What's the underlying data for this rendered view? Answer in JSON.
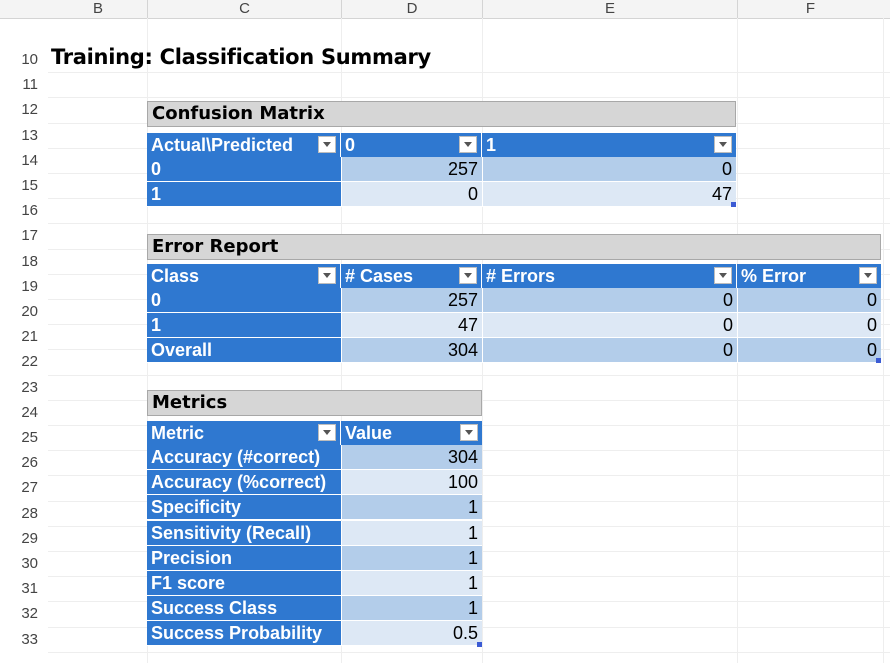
{
  "columns": [
    "B",
    "C",
    "D",
    "E",
    "F"
  ],
  "rows": [
    "10",
    "11",
    "12",
    "13",
    "14",
    "15",
    "16",
    "17",
    "18",
    "19",
    "20",
    "21",
    "22",
    "23",
    "24",
    "25",
    "26",
    "27",
    "28",
    "29",
    "30",
    "31",
    "32",
    "33"
  ],
  "title": "Training: Classification Summary",
  "confusion": {
    "title": "Confusion Matrix",
    "headers": [
      "Actual\\Predicted",
      "0",
      "1"
    ],
    "rows": [
      {
        "label": "0",
        "values": [
          "257",
          "0"
        ]
      },
      {
        "label": "1",
        "values": [
          "0",
          "47"
        ]
      }
    ]
  },
  "errors": {
    "title": "Error Report",
    "headers": [
      "Class",
      "# Cases",
      "# Errors",
      "% Error"
    ],
    "rows": [
      {
        "label": "0",
        "values": [
          "257",
          "0",
          "0"
        ]
      },
      {
        "label": "1",
        "values": [
          "47",
          "0",
          "0"
        ]
      },
      {
        "label": "Overall",
        "values": [
          "304",
          "0",
          "0"
        ]
      }
    ]
  },
  "metrics": {
    "title": "Metrics",
    "headers": [
      "Metric",
      "Value"
    ],
    "rows": [
      {
        "label": "Accuracy (#correct)",
        "value": "304"
      },
      {
        "label": "Accuracy (%correct)",
        "value": "100"
      },
      {
        "label": "Specificity",
        "value": "1"
      },
      {
        "label": "Sensitivity (Recall)",
        "value": "1"
      },
      {
        "label": "Precision",
        "value": "1"
      },
      {
        "label": "F1 score",
        "value": "1"
      },
      {
        "label": "Success Class",
        "value": "1"
      },
      {
        "label": "Success Probability",
        "value": "0.5"
      }
    ]
  },
  "colors": {
    "header_blue": "#2f78d0",
    "band_dark": "#b3cdea",
    "band_light": "#dde8f5",
    "title_grey": "#d6d6d6"
  }
}
